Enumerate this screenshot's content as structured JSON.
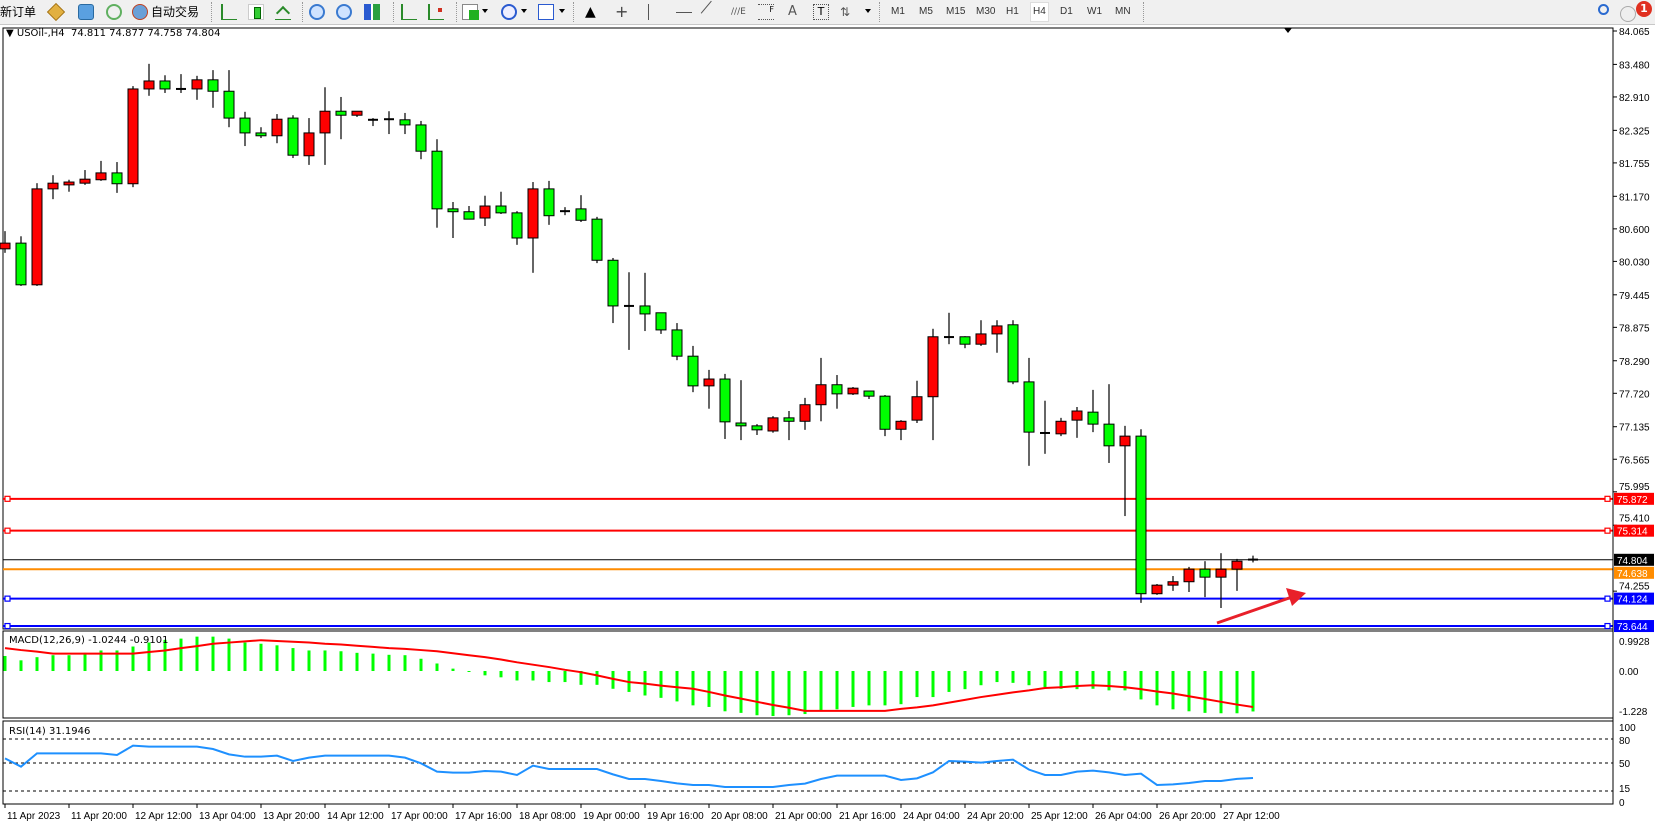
{
  "toolbar": {
    "new_order_label": "新订单",
    "auto_trading_label": "自动交易",
    "timeframes": [
      "M1",
      "M5",
      "M15",
      "M30",
      "H1",
      "H4",
      "D1",
      "W1",
      "MN"
    ],
    "active_timeframe": "H4",
    "notification_count": "1",
    "icons": [
      "market-watch-icon",
      "data-window-icon",
      "signal-icon",
      "auto-trading-icon",
      "bar-chart-icon",
      "candlestick-icon",
      "line-chart-icon",
      "zoom-in-icon",
      "zoom-out-icon",
      "tile-windows-icon",
      "chart-shift-icon",
      "autoscroll-icon",
      "indicators-icon",
      "periods-icon",
      "templates-icon",
      "cursor-icon",
      "crosshair-icon",
      "vertical-line-icon",
      "horizontal-line-icon",
      "trendline-icon",
      "fibonacci-icon",
      "fibo-fan-icon",
      "text-icon",
      "text-label-icon",
      "arrows-icon",
      "search-icon",
      "notification-icon"
    ]
  },
  "chart": {
    "symbol": "USOil-,H4",
    "ohlc_header": "74.811 74.877 74.758 74.804"
  },
  "chart_data": {
    "type": "candlestick",
    "colors": {
      "up": "#ff0000",
      "down": "#00ff00",
      "outline": "#000000"
    },
    "ohlc": [
      [
        80.25,
        80.56,
        80.18,
        80.35
      ],
      [
        80.35,
        80.47,
        79.6,
        79.62
      ],
      [
        79.62,
        81.4,
        79.6,
        81.3
      ],
      [
        81.3,
        81.54,
        81.12,
        81.4
      ],
      [
        81.37,
        81.46,
        81.25,
        81.42
      ],
      [
        81.4,
        81.63,
        81.37,
        81.47
      ],
      [
        81.46,
        81.79,
        81.44,
        81.58
      ],
      [
        81.58,
        81.77,
        81.23,
        81.39
      ],
      [
        81.39,
        83.1,
        81.33,
        83.05
      ],
      [
        83.05,
        83.49,
        82.93,
        83.19
      ],
      [
        83.19,
        83.29,
        82.98,
        83.05
      ],
      [
        83.05,
        83.31,
        82.98,
        83.05
      ],
      [
        83.05,
        83.28,
        82.86,
        83.21
      ],
      [
        83.21,
        83.38,
        82.72,
        83.01
      ],
      [
        83.01,
        83.38,
        82.38,
        82.54
      ],
      [
        82.54,
        82.65,
        82.05,
        82.28
      ],
      [
        82.28,
        82.38,
        82.19,
        82.23
      ],
      [
        82.23,
        82.61,
        82.1,
        82.52
      ],
      [
        82.54,
        82.59,
        81.84,
        81.89
      ],
      [
        81.88,
        82.54,
        81.72,
        82.28
      ],
      [
        82.28,
        83.08,
        81.72,
        82.66
      ],
      [
        82.66,
        82.91,
        82.17,
        82.59
      ],
      [
        82.59,
        82.66,
        82.56,
        82.66
      ],
      [
        82.51,
        82.54,
        82.4,
        82.51
      ],
      [
        82.52,
        82.66,
        82.26,
        82.52
      ],
      [
        82.51,
        82.63,
        82.26,
        82.42
      ],
      [
        82.42,
        82.49,
        81.82,
        81.96
      ],
      [
        81.96,
        82.17,
        80.62,
        80.95
      ],
      [
        80.95,
        81.07,
        80.44,
        80.9
      ],
      [
        80.9,
        81.0,
        80.77,
        80.77
      ],
      [
        80.79,
        81.18,
        80.65,
        81.0
      ],
      [
        81.0,
        81.25,
        80.86,
        80.88
      ],
      [
        80.88,
        80.91,
        80.32,
        80.44
      ],
      [
        80.44,
        81.42,
        79.83,
        81.3
      ],
      [
        81.3,
        81.44,
        80.67,
        80.83
      ],
      [
        80.91,
        80.98,
        80.84,
        80.91
      ],
      [
        80.95,
        81.19,
        80.72,
        80.75
      ],
      [
        80.77,
        80.81,
        80.0,
        80.05
      ],
      [
        80.05,
        80.09,
        78.95,
        79.25
      ],
      [
        79.25,
        79.84,
        78.48,
        79.25
      ],
      [
        79.25,
        79.83,
        78.81,
        79.11
      ],
      [
        79.13,
        79.13,
        78.76,
        78.83
      ],
      [
        78.83,
        78.95,
        78.3,
        78.37
      ],
      [
        78.37,
        78.55,
        77.74,
        77.85
      ],
      [
        77.85,
        78.13,
        77.45,
        77.97
      ],
      [
        77.97,
        78.06,
        76.92,
        77.22
      ],
      [
        77.2,
        77.95,
        76.9,
        77.15
      ],
      [
        77.15,
        77.18,
        76.99,
        77.08
      ],
      [
        77.06,
        77.32,
        77.03,
        77.29
      ],
      [
        77.29,
        77.41,
        76.9,
        77.23
      ],
      [
        77.23,
        77.64,
        77.08,
        77.52
      ],
      [
        77.52,
        78.34,
        77.23,
        77.87
      ],
      [
        77.87,
        78.04,
        77.45,
        77.71
      ],
      [
        77.71,
        77.83,
        77.69,
        77.81
      ],
      [
        77.76,
        77.76,
        77.62,
        77.67
      ],
      [
        77.67,
        77.69,
        76.97,
        77.09
      ],
      [
        77.09,
        77.25,
        76.9,
        77.23
      ],
      [
        77.25,
        77.94,
        77.2,
        77.66
      ],
      [
        77.66,
        78.85,
        76.9,
        78.71
      ],
      [
        78.69,
        79.13,
        78.58,
        78.72
      ],
      [
        78.71,
        78.72,
        78.51,
        78.58
      ],
      [
        78.58,
        79.0,
        78.55,
        78.76
      ],
      [
        78.76,
        79.0,
        78.43,
        78.9
      ],
      [
        78.92,
        79.0,
        77.88,
        77.92
      ],
      [
        77.92,
        78.34,
        76.45,
        77.04
      ],
      [
        77.04,
        77.59,
        76.66,
        77.01
      ],
      [
        77.01,
        77.29,
        76.97,
        77.23
      ],
      [
        77.25,
        77.48,
        76.94,
        77.41
      ],
      [
        77.39,
        77.78,
        77.04,
        77.18
      ],
      [
        77.18,
        77.88,
        76.5,
        76.8
      ],
      [
        76.8,
        77.15,
        75.57,
        76.97
      ],
      [
        76.97,
        77.09,
        74.05,
        74.21
      ],
      [
        74.21,
        74.38,
        74.19,
        74.36
      ],
      [
        74.36,
        74.52,
        74.26,
        74.42
      ],
      [
        74.42,
        74.68,
        74.24,
        74.64
      ],
      [
        74.64,
        74.78,
        74.15,
        74.5
      ],
      [
        74.5,
        74.92,
        73.96,
        74.64
      ],
      [
        74.64,
        74.82,
        74.26,
        74.78
      ],
      [
        74.811,
        74.877,
        74.758,
        74.804
      ]
    ],
    "time_labels": [
      "11 Apr 2023",
      "11 Apr 20:00",
      "12 Apr 12:00",
      "13 Apr 04:00",
      "13 Apr 20:00",
      "14 Apr 12:00",
      "17 Apr 00:00",
      "17 Apr 16:00",
      "18 Apr 08:00",
      "19 Apr 00:00",
      "19 Apr 16:00",
      "20 Apr 08:00",
      "21 Apr 00:00",
      "21 Apr 16:00",
      "24 Apr 04:00",
      "24 Apr 20:00",
      "25 Apr 12:00",
      "26 Apr 04:00",
      "26 Apr 20:00",
      "27 Apr 12:00"
    ],
    "price_ticks": [
      "84.065",
      "83.480",
      "82.910",
      "82.325",
      "81.755",
      "81.170",
      "80.600",
      "80.030",
      "79.445",
      "78.875",
      "78.290",
      "77.720",
      "77.135",
      "76.565",
      "75.995",
      "75.410",
      "74.255"
    ],
    "horizontal_lines": [
      {
        "price": "75.872",
        "color": "#ff0000",
        "kind": "trendline"
      },
      {
        "price": "75.314",
        "color": "#ff0000",
        "kind": "trendline"
      },
      {
        "price": "74.804",
        "color": "#000000",
        "kind": "bid"
      },
      {
        "price": "74.638",
        "color": "#ff8c00",
        "kind": "level"
      },
      {
        "price": "74.124",
        "color": "#0000ff",
        "kind": "trendline"
      },
      {
        "price": "73.644",
        "color": "#0000ff",
        "kind": "trendline"
      }
    ],
    "annotation_arrow_color": "#e8202a",
    "macd": {
      "label": "MACD(12,26,9) -1.0244 -0.9101",
      "axis_labels": [
        "0.9928",
        "0.00",
        "-1.228"
      ],
      "histogram_color": "#00ff00",
      "signal_color": "#ff0000",
      "histogram": [
        0.38,
        0.27,
        0.35,
        0.4,
        0.4,
        0.46,
        0.52,
        0.52,
        0.62,
        0.72,
        0.79,
        0.82,
        0.87,
        0.87,
        0.82,
        0.72,
        0.69,
        0.65,
        0.58,
        0.52,
        0.52,
        0.5,
        0.46,
        0.44,
        0.41,
        0.4,
        0.31,
        0.19,
        0.06,
        -0.01,
        -0.11,
        -0.16,
        -0.24,
        -0.24,
        -0.28,
        -0.28,
        -0.35,
        -0.35,
        -0.45,
        -0.53,
        -0.62,
        -0.68,
        -0.77,
        -0.87,
        -0.91,
        -1.02,
        -1.06,
        -1.12,
        -1.14,
        -1.12,
        -1.09,
        -1.01,
        -0.97,
        -0.91,
        -0.87,
        -0.87,
        -0.84,
        -0.66,
        -0.66,
        -0.53,
        -0.46,
        -0.36,
        -0.28,
        -0.3,
        -0.36,
        -0.41,
        -0.45,
        -0.46,
        -0.45,
        -0.49,
        -0.49,
        -0.72,
        -0.87,
        -0.97,
        -1.02,
        -1.06,
        -1.07,
        -1.07,
        -1.0244
      ],
      "signal": [
        0.58,
        0.53,
        0.49,
        0.44,
        0.44,
        0.44,
        0.44,
        0.44,
        0.44,
        0.48,
        0.52,
        0.58,
        0.63,
        0.69,
        0.72,
        0.75,
        0.78,
        0.76,
        0.74,
        0.72,
        0.69,
        0.67,
        0.64,
        0.61,
        0.58,
        0.56,
        0.53,
        0.5,
        0.45,
        0.4,
        0.35,
        0.29,
        0.22,
        0.16,
        0.1,
        0.03,
        -0.03,
        -0.11,
        -0.2,
        -0.28,
        -0.32,
        -0.37,
        -0.41,
        -0.45,
        -0.53,
        -0.62,
        -0.7,
        -0.78,
        -0.86,
        -0.93,
        -1.01,
        -1.01,
        -1.01,
        -1.01,
        -1.01,
        -1.01,
        -0.96,
        -0.92,
        -0.87,
        -0.8,
        -0.73,
        -0.66,
        -0.6,
        -0.54,
        -0.49,
        -0.43,
        -0.41,
        -0.38,
        -0.36,
        -0.38,
        -0.41,
        -0.46,
        -0.52,
        -0.57,
        -0.64,
        -0.71,
        -0.78,
        -0.85,
        -0.9101
      ]
    },
    "rsi": {
      "label": "RSI(14) 31.1946",
      "axis_labels": [
        "100",
        "80",
        "50",
        "15",
        "0"
      ],
      "levels": [
        80,
        50,
        15
      ],
      "color": "#1e90ff",
      "values": [
        55.8,
        45.4,
        62,
        62,
        62,
        62,
        62,
        60,
        71.7,
        70.4,
        70.4,
        70.4,
        70.4,
        67.5,
        60.8,
        57.9,
        57.9,
        59.2,
        52.5,
        56.7,
        59.2,
        59.2,
        59.2,
        59.2,
        59.2,
        56.7,
        49.6,
        39.2,
        37.9,
        37.9,
        40,
        39.2,
        35,
        46.7,
        42.5,
        42.5,
        42.5,
        42.5,
        35.8,
        30,
        30,
        27.5,
        24.6,
        22.5,
        22.5,
        20,
        20,
        20,
        20,
        22.5,
        24.2,
        30,
        34.2,
        34.2,
        34.2,
        34.2,
        28.8,
        30.8,
        38.3,
        52.5,
        51.7,
        50.4,
        52.5,
        54.2,
        41.7,
        35,
        35,
        39.2,
        40.4,
        38.3,
        35,
        36.7,
        22.5,
        23.3,
        25,
        27.5,
        27.5,
        30.1,
        31.1946
      ]
    }
  }
}
